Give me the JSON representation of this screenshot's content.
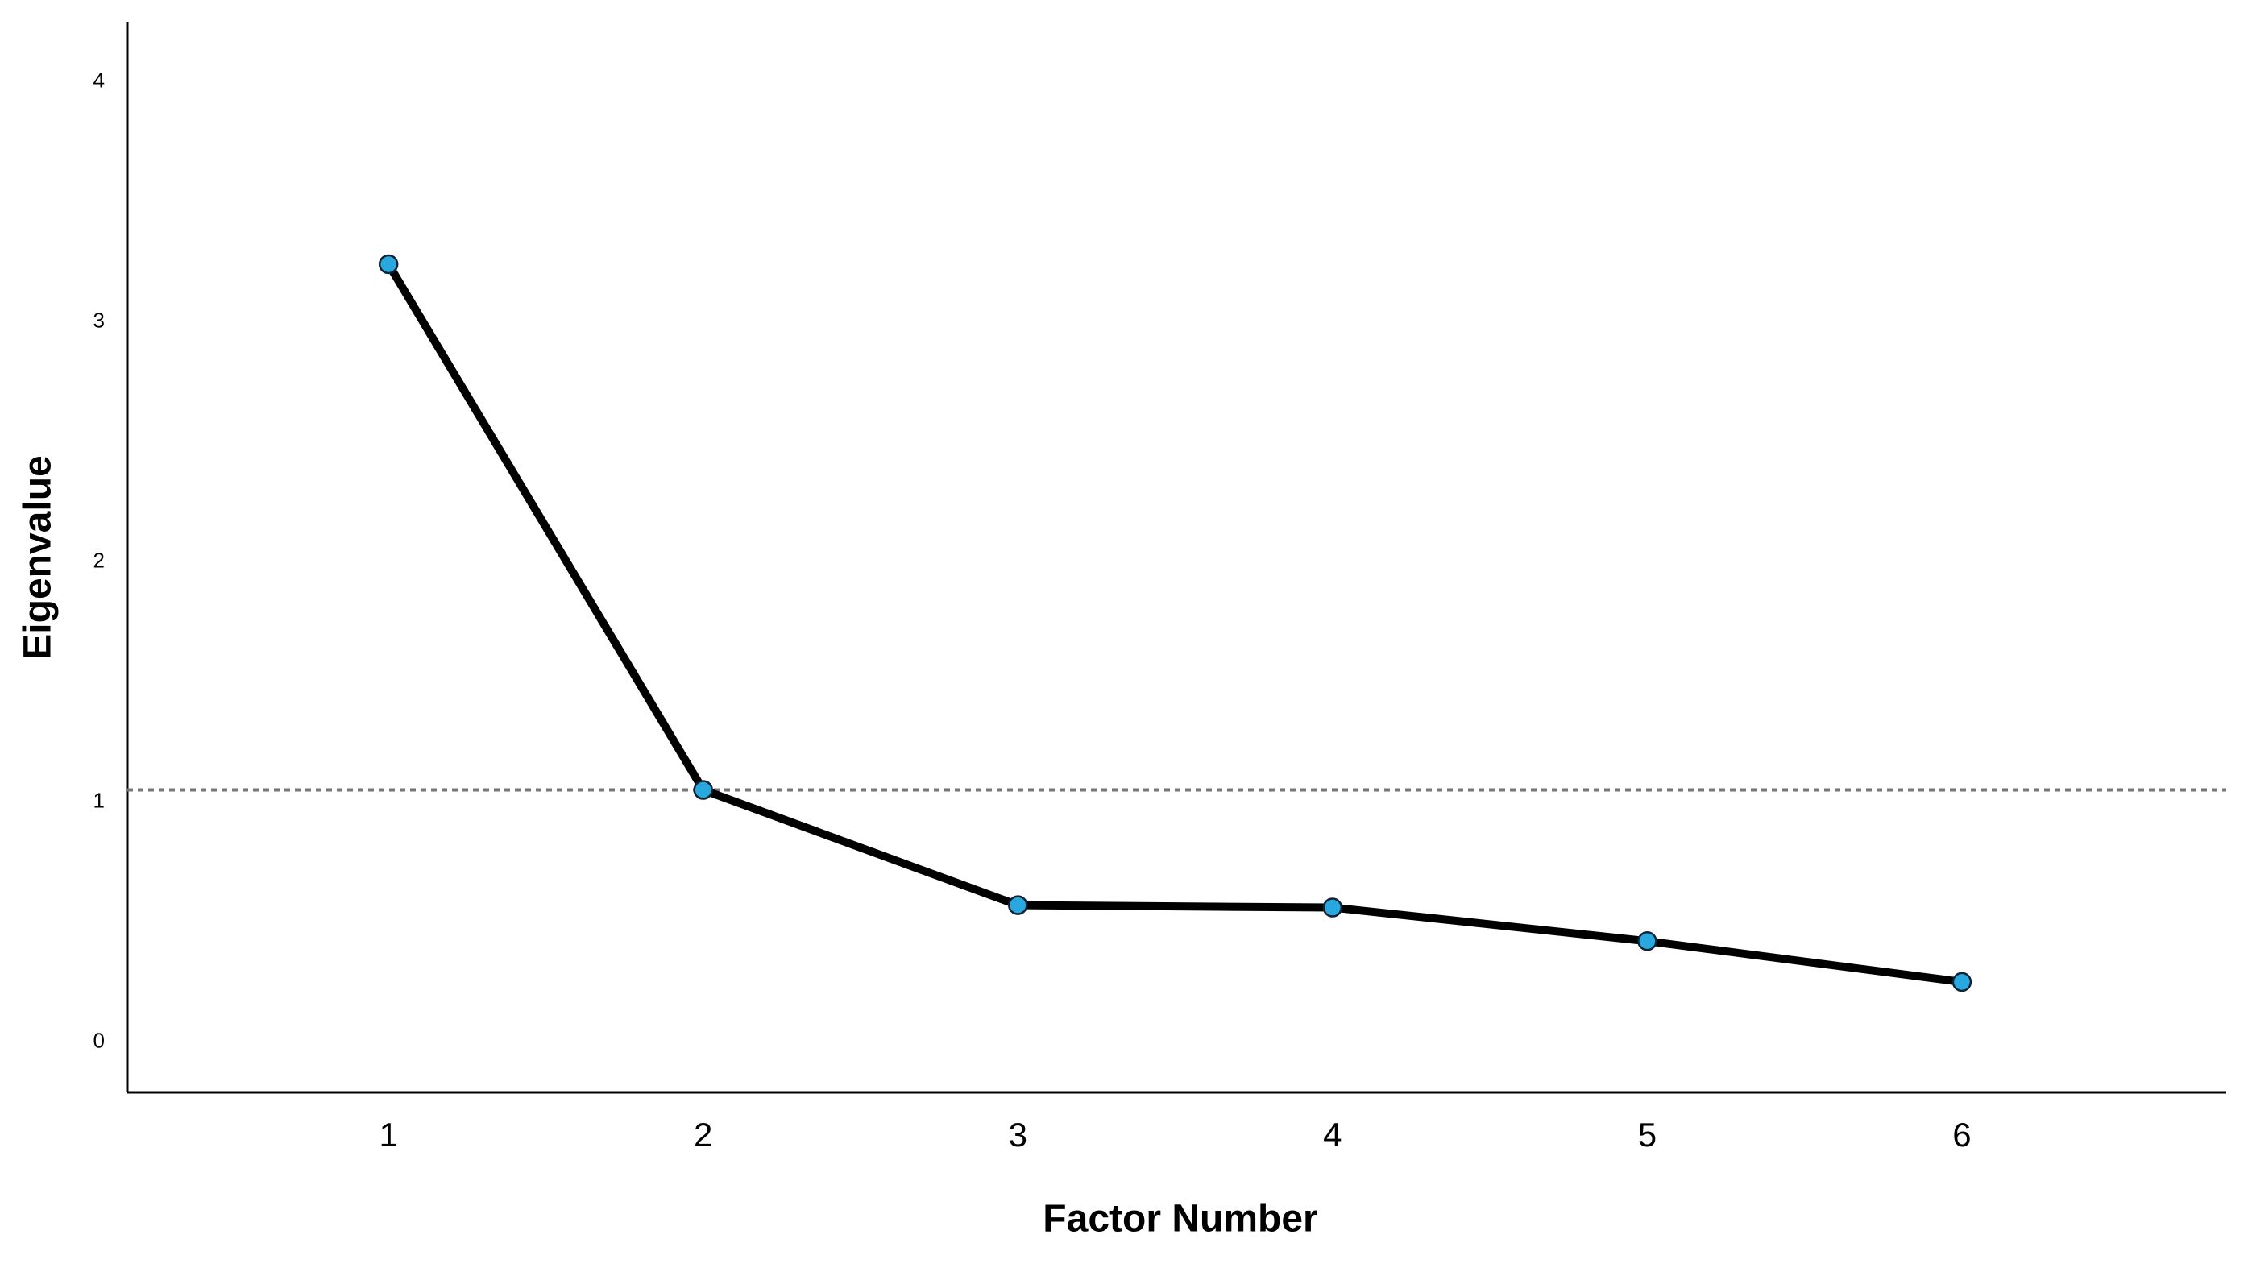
{
  "chart_data": {
    "type": "line",
    "x_label": "Factor Number",
    "y_label": "Eigenvalue",
    "x": [
      1,
      2,
      3,
      4,
      5,
      6
    ],
    "values": [
      3.24,
      1.05,
      0.57,
      0.56,
      0.42,
      0.25
    ],
    "line_color": "#000000",
    "marker_color": "#29a8e0",
    "reference_line": 1.05,
    "reference_color": "#777777",
    "xlim": [
      0.17,
      6.84
    ],
    "xticks": [
      1,
      2,
      3,
      4,
      5,
      6
    ],
    "ylim": [
      -0.21,
      4.25
    ],
    "yticks": [
      0,
      1,
      2,
      3,
      4
    ],
    "grid": false
  }
}
